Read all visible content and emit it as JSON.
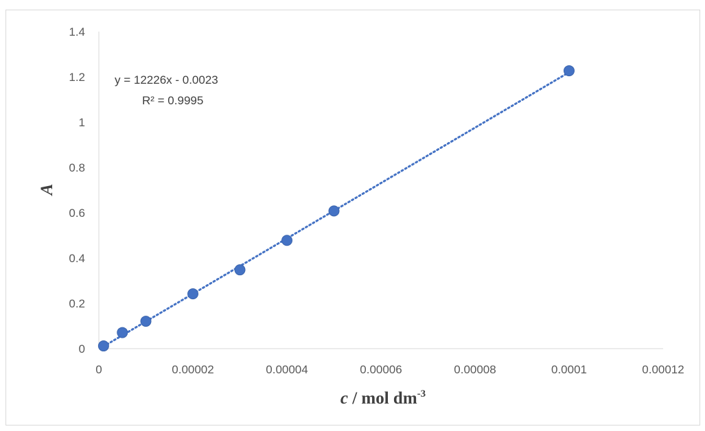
{
  "chart_data": {
    "type": "scatter",
    "xlabel_italic": "c",
    "xlabel_rest": " / mol dm",
    "xlabel_sup": "-3",
    "ylabel": "A",
    "xlim": [
      0,
      0.00012
    ],
    "ylim": [
      0,
      1.4
    ],
    "x_ticks": [
      "0",
      "0.00002",
      "0.00004",
      "0.00006",
      "0.00008",
      "0.0001",
      "0.00012"
    ],
    "y_ticks": [
      "0",
      "0.2",
      "0.4",
      "0.6",
      "0.8",
      "1",
      "1.2",
      "1.4"
    ],
    "series": [
      {
        "x": [
          1e-06,
          5e-06,
          1e-05,
          2e-05,
          3e-05,
          4e-05,
          5e-05,
          0.0001
        ],
        "y": [
          0.012,
          0.071,
          0.121,
          0.242,
          0.348,
          0.478,
          0.608,
          1.227
        ],
        "color": "#4472C4"
      }
    ],
    "trendline": {
      "type": "linear",
      "style": "dotted",
      "slope": 12226,
      "intercept": -0.0023,
      "equation": "y = 12226x - 0.0023",
      "r_squared": "R² = 0.9995"
    },
    "gridlines": false
  }
}
